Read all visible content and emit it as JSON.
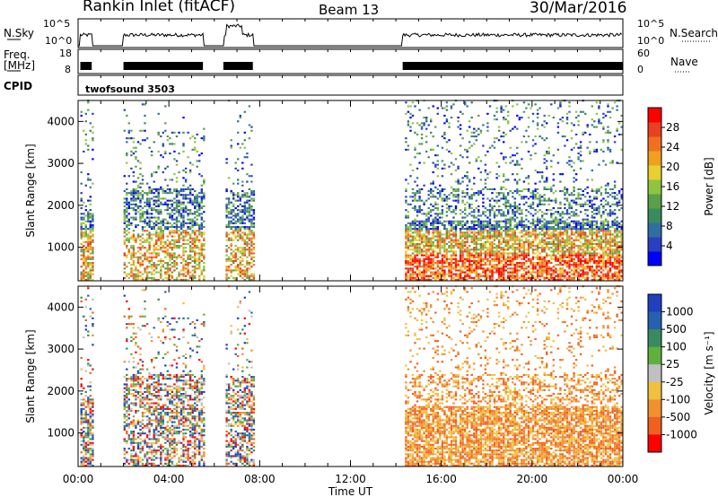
{
  "header": {
    "station": "Rankin Inlet (fitACF)",
    "beam": "Beam 13",
    "date": "30/Mar/2016"
  },
  "panels": {
    "nsky": {
      "label": "N.Sky",
      "ticks_left": [
        "10^5",
        "10^0"
      ],
      "ticks_right": [
        "10^5",
        "10^0"
      ],
      "right_label": "N.Search"
    },
    "freq": {
      "label": "Freq.",
      "unit": "[MHz]",
      "ticks_left": [
        "18",
        "8"
      ],
      "ticks_right": [
        "60",
        "0"
      ],
      "right_label": "Nave"
    },
    "cpid": {
      "label": "CPID",
      "value": "twofsound 3503"
    }
  },
  "chart_data": [
    {
      "type": "heatmap",
      "name": "power",
      "ylabel": "Slant Range [km]",
      "yticks": [
        "1000",
        "2000",
        "3000",
        "4000"
      ],
      "ylim": [
        200,
        4500
      ],
      "xlim": [
        0,
        24
      ],
      "colorbar": {
        "label": "Power [dB]",
        "ticks": [
          "4",
          "8",
          "12",
          "16",
          "20",
          "24",
          "28"
        ],
        "colors": [
          "#0000ff",
          "#2a3fbf",
          "#2f6fa0",
          "#3a8a5f",
          "#5a9f4a",
          "#8fc440",
          "#e8d030",
          "#f0a020",
          "#f07020",
          "#e84020",
          "#ff0000"
        ]
      }
    },
    {
      "type": "heatmap",
      "name": "velocity",
      "ylabel": "Slant Range [km]",
      "yticks": [
        "1000",
        "2000",
        "3000",
        "4000"
      ],
      "ylim": [
        200,
        4500
      ],
      "xlim": [
        0,
        24
      ],
      "xticks": [
        "00:00",
        "04:00",
        "08:00",
        "12:00",
        "16:00",
        "20:00",
        "00:00"
      ],
      "xlabel": "Time UT",
      "colorbar": {
        "label": "Velocity [m s⁻¹]",
        "ticks": [
          "1000",
          "500",
          "100",
          "25",
          "-25",
          "-100",
          "-500",
          "-1000"
        ],
        "colors": [
          "#2040c0",
          "#2860b0",
          "#3a8a5f",
          "#60b040",
          "#c0c0c0",
          "#f0c040",
          "#f09030",
          "#f06020",
          "#ff0000"
        ]
      }
    }
  ]
}
